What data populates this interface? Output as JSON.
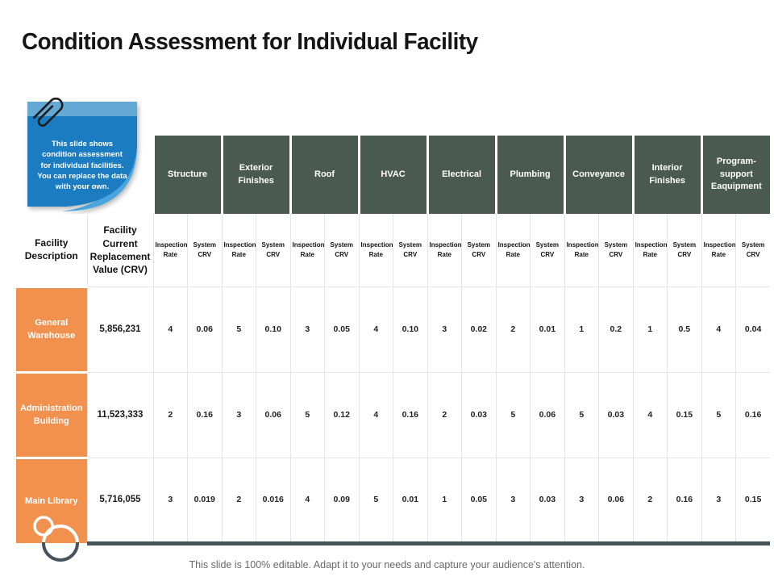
{
  "slide": {
    "title": "Condition Assessment for Individual Facility",
    "footer": "This slide is 100% editable. Adapt it to your needs and capture your audience's attention."
  },
  "note": {
    "text": "This slide shows condition assessment for individual facilities. You can replace the data with your own."
  },
  "table": {
    "col1_header": "Facility Description",
    "col2_header": "Facility Current Replacement Value (CRV)",
    "discipline_headers": [
      "Structure",
      "Exterior Finishes",
      "Roof",
      "HVAC",
      "Electrical",
      "Plumbing",
      "Conveyance",
      "Interior Finishes",
      "Program- support Eaquipment"
    ],
    "sub_headers": [
      "Inspection Rate",
      "System CRV"
    ],
    "rows": [
      {
        "facility": "General Warehouse",
        "crv": "5,856,231",
        "values": [
          "4",
          "0.06",
          "5",
          "0.10",
          "3",
          "0.05",
          "4",
          "0.10",
          "3",
          "0.02",
          "2",
          "0.01",
          "1",
          "0.2",
          "1",
          "0.5",
          "4",
          "0.04"
        ]
      },
      {
        "facility": "Administration Building",
        "crv": "11,523,333",
        "values": [
          "2",
          "0.16",
          "3",
          "0.06",
          "5",
          "0.12",
          "4",
          "0.16",
          "2",
          "0.03",
          "5",
          "0.06",
          "5",
          "0.03",
          "4",
          "0.15",
          "5",
          "0.16"
        ]
      },
      {
        "facility": "Main Library",
        "crv": "5,716,055",
        "values": [
          "3",
          "0.019",
          "2",
          "0.016",
          "4",
          "0.09",
          "5",
          "0.01",
          "1",
          "0.05",
          "3",
          "0.03",
          "3",
          "0.06",
          "2",
          "0.16",
          "3",
          "0.15"
        ]
      }
    ]
  },
  "colors": {
    "header_green": "#4b5a51",
    "accent_orange": "#f2914e",
    "note_blue": "#1b7cc1",
    "note_blue_light": "#64a9d6",
    "curl_blue": "#4aa4dd",
    "dark_border": "#45535b"
  }
}
